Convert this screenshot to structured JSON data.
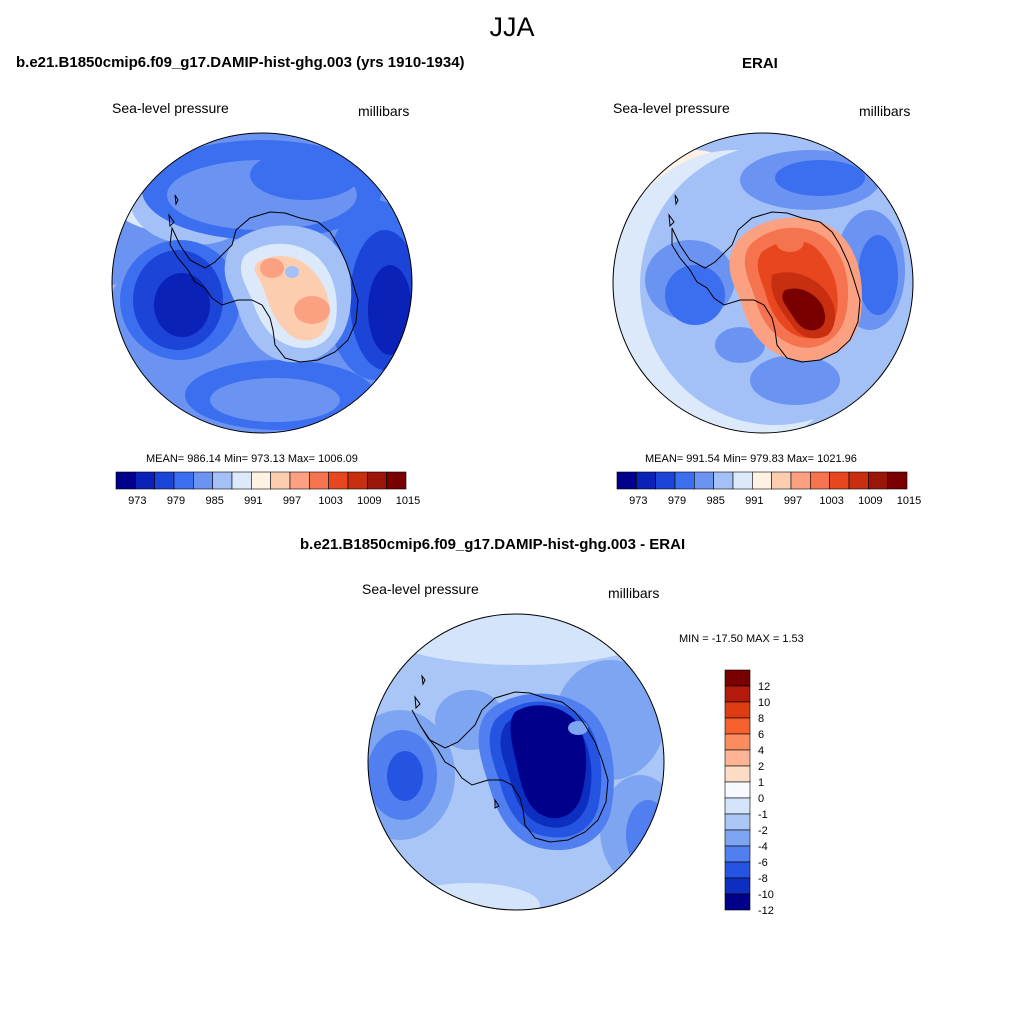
{
  "title": "JJA",
  "panels": [
    {
      "title": "b.e21.B1850cmip6.f09_g17.DAMIP-hist-ghg.003 (yrs 1910-1934)",
      "left_label": "Sea-level pressure",
      "right_label": "millibars",
      "stats": "MEAN= 986.14  Min= 973.13  Max= 1006.09",
      "colorbar_ticks": [
        "973",
        "979",
        "985",
        "991",
        "997",
        "1003",
        "1009",
        "1015"
      ]
    },
    {
      "title": "ERAI",
      "left_label": "Sea-level pressure",
      "right_label": "millibars",
      "stats": "MEAN= 991.54  Min= 979.83  Max= 1021.96",
      "colorbar_ticks": [
        "973",
        "979",
        "985",
        "991",
        "997",
        "1003",
        "1009",
        "1015"
      ]
    },
    {
      "title": "b.e21.B1850cmip6.f09_g17.DAMIP-hist-ghg.003 - ERAI",
      "left_label": "Sea-level pressure",
      "right_label": "millibars",
      "stats": "MIN = -17.50 MAX =   1.53",
      "colorbar_ticks": [
        "12",
        "10",
        "8",
        "6",
        "4",
        "2",
        "1",
        "0",
        "-1",
        "-2",
        "-4",
        "-6",
        "-8",
        "-10",
        "-12"
      ]
    }
  ],
  "palettes": {
    "slp": [
      "#00008b",
      "#0b22b8",
      "#1c45d8",
      "#3c6ef0",
      "#6b93f2",
      "#a4c1f7",
      "#dbe9fb",
      "#fff1e3",
      "#fdcdb0",
      "#fba182",
      "#f67350",
      "#e8461f",
      "#c82e10",
      "#9b1608",
      "#780000"
    ],
    "diff": [
      "#780000",
      "#b31a0b",
      "#de3c12",
      "#f6602e",
      "#fb8c60",
      "#fdb394",
      "#fddcc6",
      "#f6f9ff",
      "#d3e4fb",
      "#a9c6f6",
      "#7ea5f1",
      "#527ff0",
      "#2554e3",
      "#0c2fc1",
      "#00008b"
    ]
  }
}
